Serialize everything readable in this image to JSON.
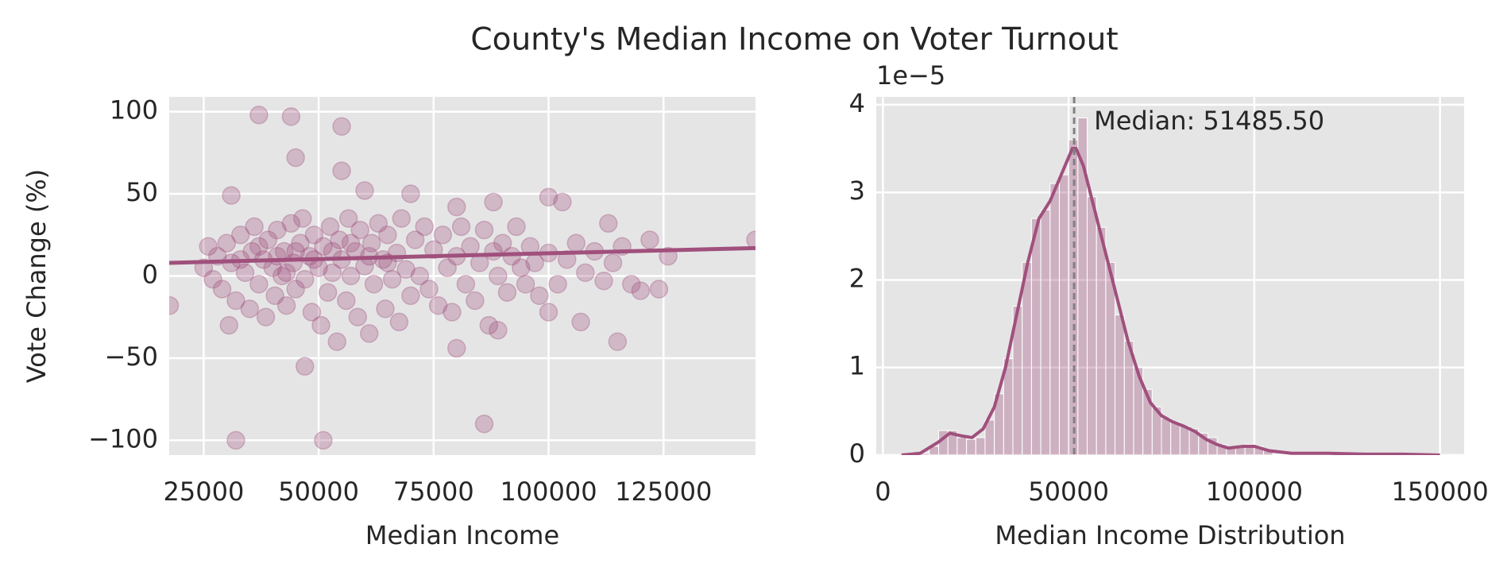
{
  "title": "County's Median Income on Voter Turnout",
  "chart_data": [
    {
      "type": "scatter",
      "xlabel": "Median Income",
      "ylabel": "Vote Change (%)",
      "color": "#a0507d",
      "grid": true,
      "xlim": [
        17500,
        145000
      ],
      "ylim": [
        -109,
        109
      ],
      "xticks": [
        25000,
        50000,
        75000,
        100000,
        125000
      ],
      "yticks": [
        {
          "value": -100,
          "label": "−100"
        },
        {
          "value": -50,
          "label": "−50"
        },
        0,
        50,
        100
      ],
      "x": [
        25000,
        26000,
        27000,
        28000,
        29000,
        30000,
        30500,
        31000,
        32000,
        33000,
        34000,
        35000,
        35500,
        36000,
        37000,
        38000,
        38500,
        39000,
        40000,
        40500,
        41000,
        42000,
        42500,
        43000,
        44000,
        44500,
        45000,
        46000,
        46500,
        47000,
        48000,
        48500,
        49000,
        50000,
        50500,
        51000,
        52000,
        52500,
        53000,
        54000,
        54500,
        55000,
        56000,
        56500,
        57000,
        58000,
        58500,
        59000,
        60000,
        61000,
        61500,
        62000,
        63000,
        64000,
        64500,
        65000,
        66000,
        67000,
        67500,
        68000,
        69000,
        70000,
        71000,
        72000,
        73000,
        74000,
        75000,
        76000,
        77000,
        78000,
        79000,
        80000,
        81000,
        82000,
        83000,
        84000,
        85000,
        86000,
        87000,
        88000,
        89000,
        90000,
        91000,
        92000,
        93000,
        94000,
        95000,
        96000,
        97000,
        98000,
        100000,
        102000,
        104000,
        106000,
        108000,
        110000,
        112000,
        114000,
        116000,
        118000,
        33000,
        37000,
        41000,
        45000,
        49000,
        53000,
        57000,
        61000,
        65000,
        43000,
        37000,
        44000,
        55000,
        45000,
        55000,
        31000,
        60000,
        70000,
        80000,
        88000,
        100000,
        103000,
        47000,
        80000,
        86000,
        32000,
        51000,
        115000,
        107000,
        100000,
        89000,
        17600,
        145000,
        126000,
        122000,
        113000,
        120000,
        124000
      ],
      "values": [
        5,
        18,
        -2,
        12,
        -8,
        20,
        -30,
        8,
        -15,
        25,
        2,
        -20,
        15,
        30,
        -5,
        10,
        -25,
        22,
        5,
        -12,
        28,
        0,
        15,
        -18,
        32,
        8,
        -8,
        20,
        35,
        -2,
        12,
        -22,
        25,
        5,
        -30,
        18,
        -10,
        30,
        2,
        -40,
        22,
        10,
        -15,
        35,
        0,
        15,
        -25,
        28,
        6,
        -35,
        20,
        -5,
        32,
        10,
        -20,
        25,
        -2,
        14,
        -28,
        35,
        4,
        -12,
        22,
        0,
        30,
        -8,
        16,
        -18,
        25,
        5,
        -22,
        12,
        30,
        -5,
        18,
        -15,
        8,
        28,
        -30,
        15,
        0,
        20,
        -10,
        12,
        30,
        5,
        -5,
        18,
        8,
        -12,
        14,
        -5,
        10,
        20,
        2,
        15,
        -3,
        8,
        18,
        -5,
        10,
        18,
        12,
        15,
        10,
        15,
        20,
        12,
        8,
        2,
        98,
        97,
        91,
        72,
        64,
        49,
        52,
        50,
        42,
        45,
        48,
        45,
        -55,
        -44,
        -90,
        -100,
        -100,
        -40,
        -28,
        -22,
        -33,
        -18,
        22,
        12,
        22,
        32,
        -9,
        -8
      ],
      "trend": {
        "x": [
          17500,
          145000
        ],
        "values": [
          8,
          17
        ]
      }
    },
    {
      "type": "histogram",
      "xlabel": "Median Income Distribution",
      "y_offset_label": "1e−5",
      "color": "#a0507d",
      "grid": true,
      "xlim": [
        -1800,
        156500
      ],
      "ylim": [
        0,
        4.09
      ],
      "xticks": [
        0,
        50000,
        100000,
        150000
      ],
      "yticks": [
        0,
        1,
        2,
        3,
        4
      ],
      "bins": [
        10000,
        12500,
        15000,
        17500,
        20000,
        22500,
        25000,
        27500,
        30000,
        32500,
        35000,
        37500,
        40000,
        42500,
        45000,
        47500,
        50000,
        52500,
        55000,
        57500,
        60000,
        62500,
        65000,
        67500,
        70000,
        72500,
        75000,
        77500,
        80000,
        82500,
        85000,
        87500,
        90000,
        92500,
        95000,
        97500,
        100000,
        102500,
        105000
      ],
      "values": [
        0.02,
        0.1,
        0.28,
        0.28,
        0.2,
        0.18,
        0.2,
        0.4,
        0.7,
        1.1,
        1.7,
        2.2,
        2.7,
        2.8,
        3.1,
        3.2,
        3.6,
        3.85,
        2.95,
        2.6,
        2.2,
        1.6,
        1.3,
        1.0,
        0.75,
        0.55,
        0.42,
        0.38,
        0.33,
        0.3,
        0.25,
        0.2,
        0.12,
        0.08,
        0.1,
        0.12,
        0.1,
        0.05
      ],
      "kde": {
        "x": [
          5000,
          10000,
          15000,
          18000,
          21000,
          24000,
          27000,
          30000,
          33000,
          36000,
          39000,
          42000,
          45000,
          48000,
          51000,
          52000,
          54000,
          57000,
          60000,
          63000,
          66000,
          69000,
          72000,
          75000,
          78000,
          81000,
          84000,
          87000,
          90000,
          93000,
          97000,
          100000,
          104000,
          110000,
          120000,
          130000,
          140000,
          150000
        ],
        "values": [
          0,
          0.02,
          0.15,
          0.25,
          0.22,
          0.2,
          0.3,
          0.55,
          1.0,
          1.6,
          2.2,
          2.7,
          2.9,
          3.2,
          3.5,
          3.5,
          3.3,
          2.8,
          2.3,
          1.8,
          1.3,
          0.9,
          0.6,
          0.45,
          0.38,
          0.33,
          0.27,
          0.18,
          0.12,
          0.08,
          0.1,
          0.1,
          0.05,
          0.02,
          0.02,
          0.01,
          0.01,
          0
        ]
      },
      "median": 51485.5,
      "annotation": "Median: 51485.50"
    }
  ]
}
